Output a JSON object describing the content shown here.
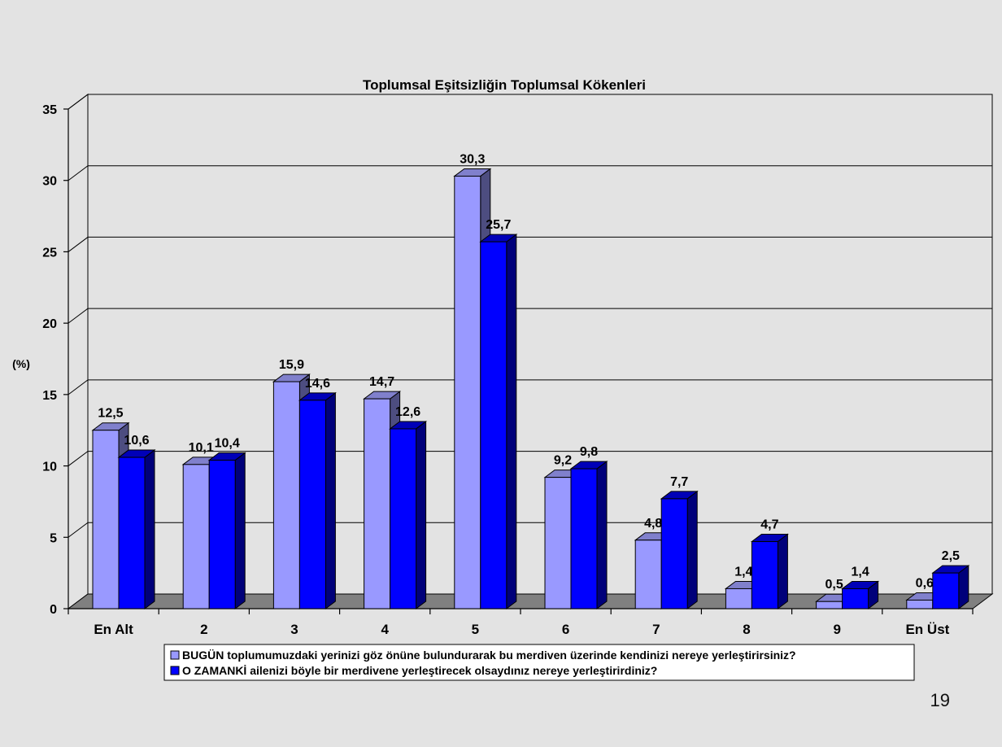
{
  "page": {
    "number": "19"
  },
  "colors": {
    "background": "#e3e3e3",
    "plot_wall": "#e3e3e3",
    "floor": "#808080",
    "series1_front": "#9999ff",
    "series1_side": "#4d4d80",
    "series1_top": "#8080cc",
    "series2_front": "#0000ff",
    "series2_side": "#00007a",
    "series2_top": "#0000b8"
  },
  "chart_data": {
    "type": "bar",
    "title": "Toplumsal Eşitsizliğin Toplumsal Kökenleri",
    "ylabel": "(%)",
    "xlabel": "",
    "ylim": [
      0,
      35
    ],
    "yticks": [
      "0",
      "5",
      "10",
      "15",
      "20",
      "25",
      "30",
      "35"
    ],
    "grid": true,
    "legend_position": "bottom",
    "categories": [
      "En Alt",
      "2",
      "3",
      "4",
      "5",
      "6",
      "7",
      "8",
      "9",
      "En Üst"
    ],
    "series": [
      {
        "name": "BUGÜN toplumumuzdaki yerinizi göz önüne bulundurarak bu merdiven üzerinde kendinizi nereye yerleştirirsiniz?",
        "values": [
          12.5,
          10.1,
          15.9,
          14.7,
          30.3,
          9.2,
          4.8,
          1.4,
          0.5,
          0.6
        ],
        "labels": [
          "12,5",
          "10,1",
          "15,9",
          "14,7",
          "30,3",
          "9,2",
          "4,8",
          "1,4",
          "0,5",
          "0,6"
        ]
      },
      {
        "name": "O ZAMANKİ ailenizi böyle bir merdivene yerleştirecek olsaydınız nereye yerleştirirdiniz?",
        "values": [
          10.6,
          10.4,
          14.6,
          12.6,
          25.7,
          9.8,
          7.7,
          4.7,
          1.4,
          2.5
        ],
        "labels": [
          "10,6",
          "10,4",
          "14,6",
          "12,6",
          "25,7",
          "9,8",
          "7,7",
          "4,7",
          "1,4",
          "2,5"
        ]
      }
    ]
  }
}
